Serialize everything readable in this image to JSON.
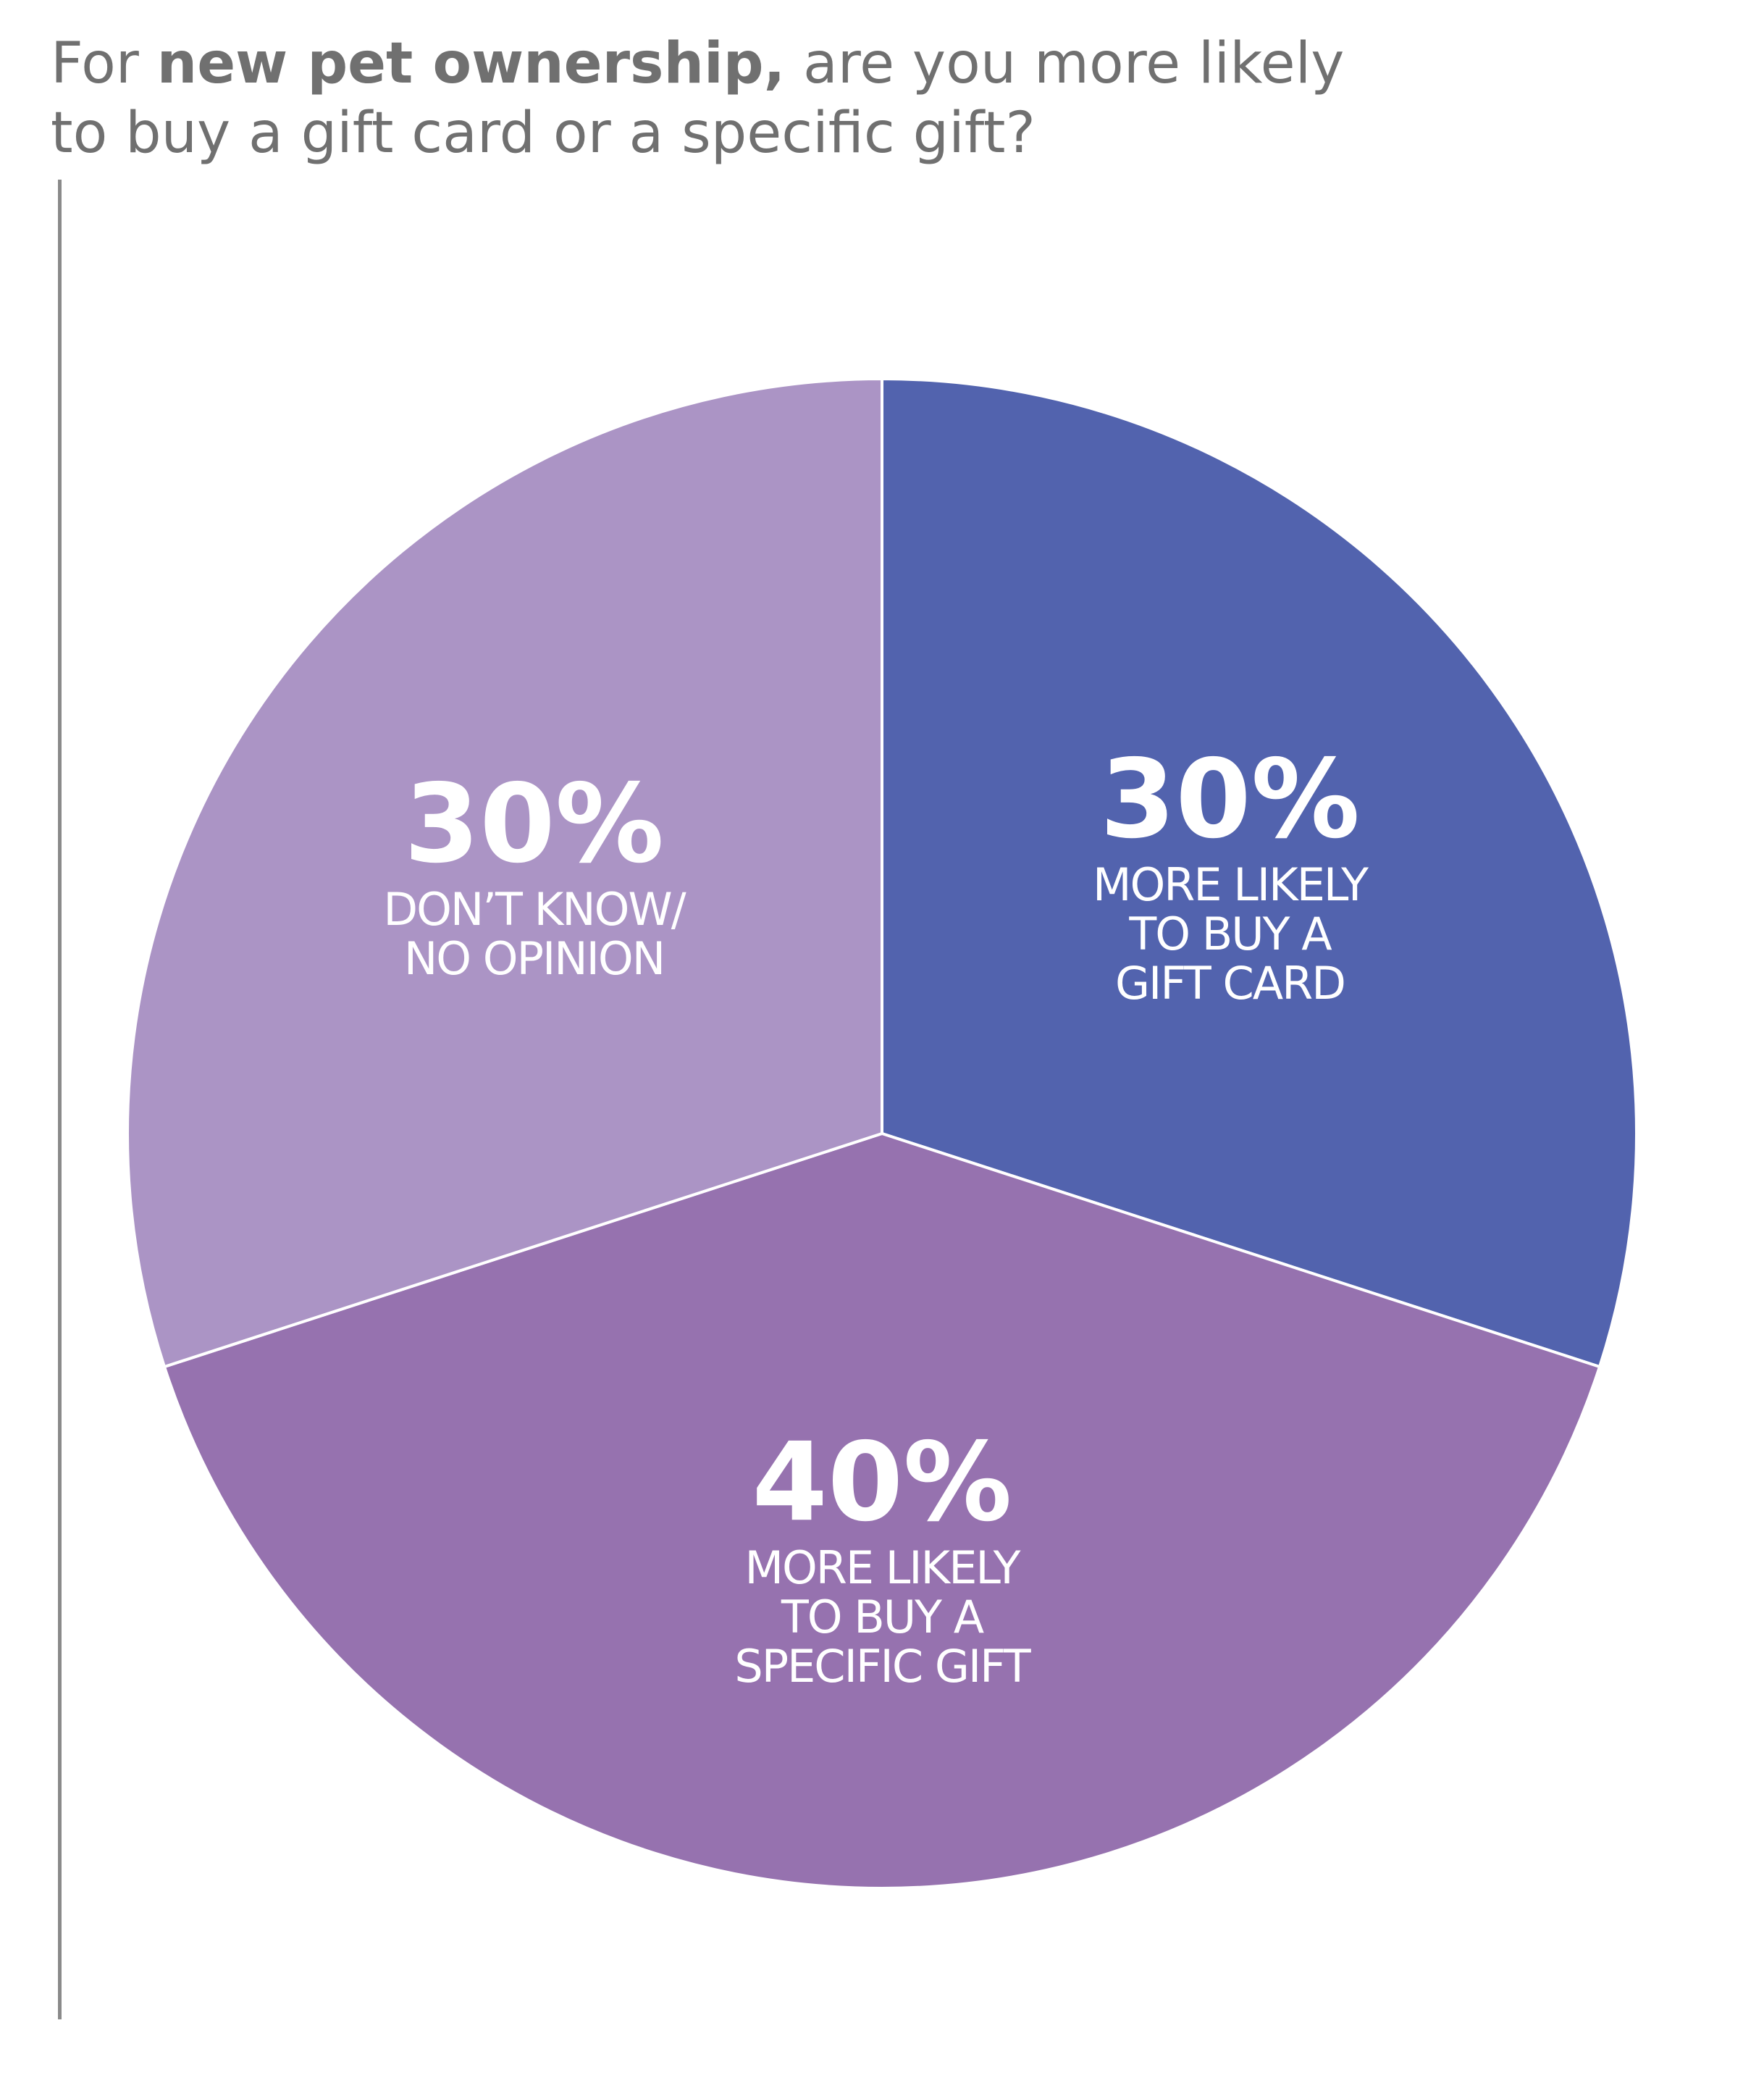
{
  "title": {
    "prefix": "For ",
    "bold": "new pet ownership,",
    "rest1": " are you more likely",
    "line2": "to buy a gift card or a specific gift?"
  },
  "chart_data": {
    "type": "pie",
    "title": "For new pet ownership, are you more likely to buy a gift card or a specific gift?",
    "slices": [
      {
        "percent_label": "30%",
        "value": 30,
        "label_lines": [
          "MORE LIKELY",
          "TO BUY A",
          "GIFT CARD"
        ],
        "color": "#5263AE"
      },
      {
        "percent_label": "40%",
        "value": 40,
        "label_lines": [
          "MORE LIKELY",
          "TO BUY A",
          "SPECIFIC GIFT"
        ],
        "color": "#9672AF"
      },
      {
        "percent_label": "30%",
        "value": 30,
        "label_lines": [
          "DON’T KNOW/",
          "NO OPINION"
        ],
        "color": "#AB94C5"
      }
    ],
    "start_angle": "12 o'clock",
    "direction": "clockwise",
    "separator_color": "#ffffff"
  }
}
